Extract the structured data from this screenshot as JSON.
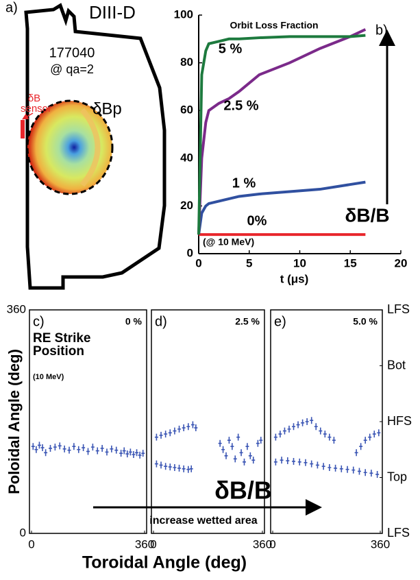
{
  "diagram": {
    "panel_label": "a)",
    "machine": "DIII-D",
    "shot": "177040",
    "condition": "@ qa=2",
    "sensor_label": "δB sensor",
    "field_label": "δBp"
  },
  "figure": {
    "xlabel": "Toroidal Angle (deg)",
    "ylabel": "Poloidal Angle (deg)",
    "annotation": "δB/B",
    "arrow_label": "increase wetted area"
  },
  "chart_data": [
    {
      "type": "line",
      "panel_label": "b)",
      "title": "Orbit Loss Fraction",
      "annotation": "(@ 10 MeV)",
      "arrow_label": "δB/B",
      "xlabel": "t (μs)",
      "x": [
        0,
        0.3,
        0.7,
        1,
        2,
        3,
        4,
        6,
        9,
        12,
        15,
        16.5
      ],
      "series": [
        {
          "name": "0%",
          "color": "#e8262b",
          "values": [
            8,
            8,
            8,
            8,
            8,
            8,
            8,
            8,
            8,
            8,
            8,
            8
          ]
        },
        {
          "name": "1 %",
          "color": "#3050a0",
          "values": [
            8,
            17,
            20,
            21,
            22,
            23,
            24,
            25,
            26,
            27,
            29,
            30
          ]
        },
        {
          "name": "2.5 %",
          "color": "#7b2a8a",
          "values": [
            8,
            40,
            55,
            60,
            63,
            65,
            68,
            75,
            80,
            86,
            91,
            94
          ]
        },
        {
          "name": "5 %",
          "color": "#1d7a3e",
          "values": [
            8,
            75,
            85,
            88,
            89,
            90,
            90,
            90.5,
            91,
            91,
            91,
            91.5
          ]
        }
      ],
      "xlim": [
        0,
        20
      ],
      "xticks": [
        0,
        5,
        10,
        15,
        20
      ],
      "ylim": [
        0,
        100
      ],
      "yticks": [
        0,
        20,
        40,
        60,
        80,
        100
      ]
    },
    {
      "type": "scatter",
      "panel_label": "c)",
      "title": "0 %",
      "annotation": "RE Strike Position",
      "subannotation": "(10 MeV)",
      "color": "#3a55b4",
      "x": [
        5,
        15,
        25,
        35,
        45,
        60,
        75,
        90,
        105,
        120,
        135,
        150,
        165,
        180,
        195,
        210,
        225,
        240,
        255,
        270,
        285,
        295,
        305,
        315,
        325,
        335,
        345,
        355
      ],
      "y": [
        140,
        135,
        142,
        138,
        130,
        137,
        139,
        141,
        136,
        134,
        140,
        135,
        138,
        132,
        139,
        133,
        137,
        131,
        136,
        134,
        129,
        133,
        128,
        131,
        127,
        130,
        126,
        129
      ],
      "xlim": [
        0,
        360
      ],
      "xticks": [
        0,
        360
      ],
      "ylim": [
        0,
        360
      ],
      "yticks": [
        0,
        360
      ]
    },
    {
      "type": "scatter",
      "panel_label": "d)",
      "title": "2.5 %",
      "color": "#3a55b4",
      "x": [
        10,
        25,
        40,
        55,
        70,
        85,
        100,
        115,
        130,
        140,
        10,
        25,
        40,
        55,
        70,
        85,
        100,
        115,
        125,
        220,
        230,
        240,
        250,
        260,
        270,
        280,
        290,
        300,
        310,
        320,
        330,
        345,
        355
      ],
      "y": [
        155,
        158,
        160,
        162,
        165,
        168,
        170,
        172,
        175,
        170,
        112,
        110,
        108,
        107,
        106,
        105,
        104,
        103,
        104,
        145,
        135,
        125,
        150,
        140,
        120,
        155,
        130,
        115,
        140,
        125,
        118,
        145,
        150
      ],
      "xlim": [
        0,
        360
      ],
      "xticks": [
        0,
        360
      ],
      "ylim": [
        0,
        360
      ]
    },
    {
      "type": "scatter",
      "panel_label": "e)",
      "title": "5.0 %",
      "color": "#3a55b4",
      "x": [
        10,
        25,
        40,
        55,
        70,
        85,
        100,
        115,
        130,
        145,
        160,
        175,
        190,
        205,
        10,
        30,
        50,
        70,
        90,
        110,
        130,
        150,
        170,
        190,
        210,
        230,
        250,
        270,
        290,
        310,
        330,
        350,
        280,
        295,
        310,
        325,
        340,
        355
      ],
      "y": [
        155,
        160,
        165,
        168,
        172,
        175,
        178,
        180,
        182,
        172,
        165,
        160,
        155,
        150,
        115,
        118,
        117,
        116,
        115,
        114,
        112,
        110,
        108,
        106,
        105,
        104,
        103,
        102,
        100,
        98,
        97,
        95,
        130,
        140,
        150,
        155,
        160,
        162
      ],
      "xlim": [
        0,
        360
      ],
      "xticks": [
        0,
        360
      ],
      "ylim": [
        0,
        360
      ],
      "y2lim": [
        0,
        360
      ],
      "y2ticks": [
        {
          "value": 360,
          "label": "LFS"
        },
        {
          "value": 270,
          "label": "Bot"
        },
        {
          "value": 180,
          "label": "HFS"
        },
        {
          "value": 90,
          "label": "Top"
        },
        {
          "value": 0,
          "label": "LFS"
        }
      ]
    }
  ]
}
